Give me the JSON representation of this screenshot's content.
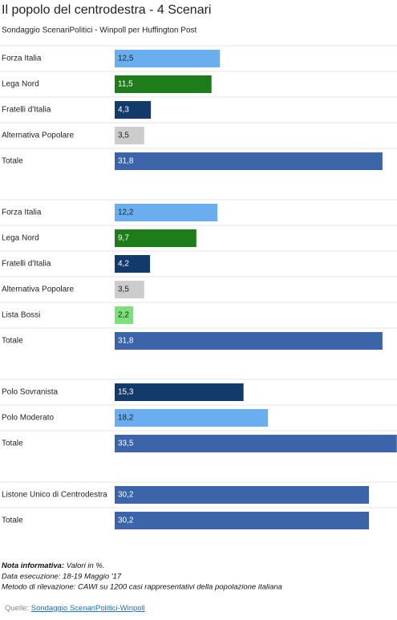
{
  "title": "Il popolo del centrodestra - 4 Scenari",
  "subtitle": "Sondaggio ScenariPolitici - Winpoll per Huffington Post",
  "chart_data": [
    {
      "type": "bar",
      "categories": [
        "Forza Italia",
        "Lega Nord",
        "Fratelli d'Italia",
        "Alternativa Popolare",
        "Totale"
      ],
      "values": [
        12.5,
        11.5,
        4.3,
        3.5,
        31.8
      ],
      "value_labels": [
        "12,5",
        "11,5",
        "4,3",
        "3,5",
        "31,8"
      ],
      "colors": [
        "#6aaef0",
        "#1e7d1a",
        "#123a6b",
        "#cccccc",
        "#3b65a8"
      ]
    },
    {
      "type": "bar",
      "categories": [
        "Forza Italia",
        "Lega Nord",
        "Fratelli d'Italia",
        "Alternativa Popolare",
        "Lista Bossi",
        "Totale"
      ],
      "values": [
        12.2,
        9.7,
        4.2,
        3.5,
        2.2,
        31.8
      ],
      "value_labels": [
        "12,2",
        "9,7",
        "4,2",
        "3,5",
        "2,2",
        "31,8"
      ],
      "colors": [
        "#6aaef0",
        "#1e7d1a",
        "#123a6b",
        "#cccccc",
        "#7ee07a",
        "#3b65a8"
      ]
    },
    {
      "type": "bar",
      "categories": [
        "Polo Sovranista",
        "Polo Moderato",
        "Totale"
      ],
      "values": [
        15.3,
        18.2,
        33.5
      ],
      "value_labels": [
        "15,3",
        "18,2",
        "33,5"
      ],
      "colors": [
        "#123a6b",
        "#6aaef0",
        "#3b65a8"
      ]
    },
    {
      "type": "bar",
      "categories": [
        "Listone Unico di Centrodestra",
        "Totale"
      ],
      "values": [
        30.2,
        30.2
      ],
      "value_labels": [
        "30,2",
        "30,2"
      ],
      "colors": [
        "#3b65a8",
        "#3b65a8"
      ]
    }
  ],
  "note": {
    "label": "Nota informativa:",
    "text": "Valori in %."
  },
  "details": [
    "Data esecuzione: 18-19 Maggio '17",
    "Metodo di rilevazione: CAWI su 1200 casi rappresentativi della popolazione italiana"
  ],
  "source": {
    "label": "Quelle:",
    "link": "Sondaggio ScenariPolitici-Winpoll"
  }
}
